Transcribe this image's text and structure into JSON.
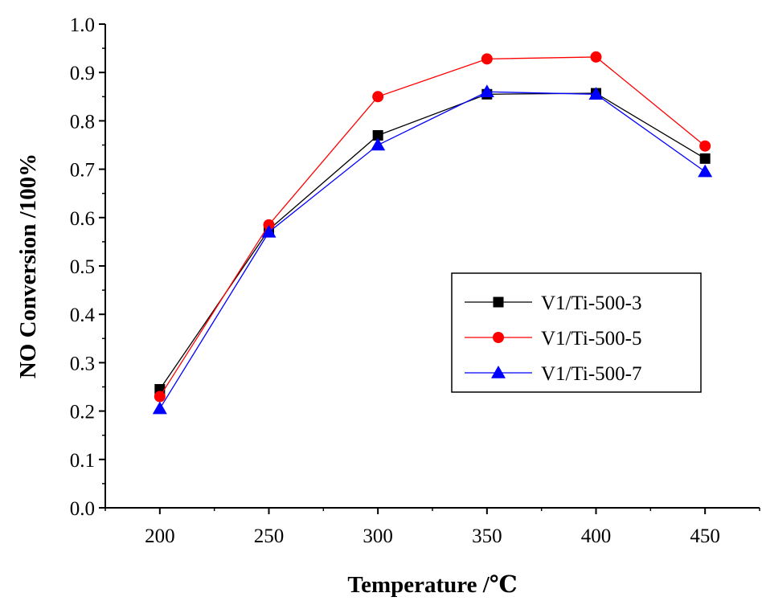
{
  "chart_data": {
    "type": "line",
    "xlabel": "Temperature /℃",
    "ylabel": "NO Conversion /100%",
    "x": [
      200,
      250,
      300,
      350,
      400,
      450
    ],
    "xlim": [
      175,
      475
    ],
    "ylim": [
      0.0,
      1.0
    ],
    "xticks": [
      "200",
      "250",
      "300",
      "350",
      "400",
      "450"
    ],
    "yticks": [
      "0.0",
      "0.1",
      "0.2",
      "0.3",
      "0.4",
      "0.5",
      "0.6",
      "0.7",
      "0.8",
      "0.9",
      "1.0"
    ],
    "grid": false,
    "legend_position": "right",
    "series": [
      {
        "name": "V1/Ti-500-3",
        "values": [
          0.245,
          0.575,
          0.77,
          0.855,
          0.857,
          0.722
        ],
        "color": "#000000",
        "marker": "square"
      },
      {
        "name": "V1/Ti-500-5",
        "values": [
          0.23,
          0.585,
          0.85,
          0.928,
          0.932,
          0.748
        ],
        "color": "#ff0000",
        "marker": "circle"
      },
      {
        "name": "V1/Ti-500-7",
        "values": [
          0.205,
          0.57,
          0.75,
          0.86,
          0.855,
          0.695
        ],
        "color": "#0000ff",
        "marker": "triangle"
      }
    ]
  }
}
